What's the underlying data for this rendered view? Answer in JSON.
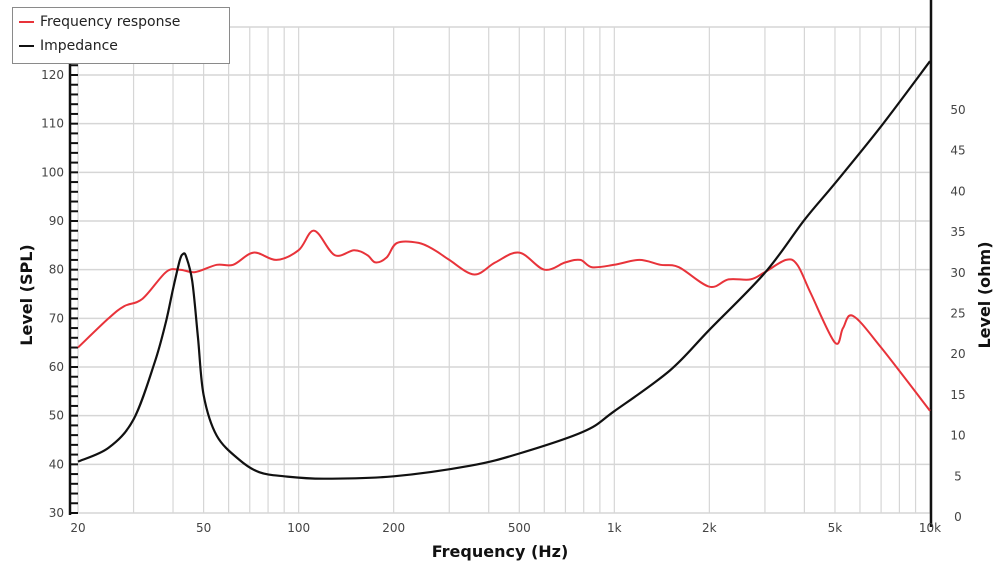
{
  "chart_data": {
    "type": "line",
    "title": "",
    "xlabel": "Frequency (Hz)",
    "ylabel": "Level (SPL)",
    "y2label": "Level (ohm)",
    "xscale": "log",
    "xlim": [
      20,
      10000
    ],
    "ylim": [
      30,
      125
    ],
    "y2lim": [
      0,
      58
    ],
    "grid": true,
    "legend_position": "top-left",
    "x_ticks": [
      {
        "value": 20,
        "label": "20"
      },
      {
        "value": 50,
        "label": "50"
      },
      {
        "value": 100,
        "label": "100"
      },
      {
        "value": 200,
        "label": "200"
      },
      {
        "value": 500,
        "label": "500"
      },
      {
        "value": 1000,
        "label": "1k"
      },
      {
        "value": 2000,
        "label": "2k"
      },
      {
        "value": 5000,
        "label": "5k"
      },
      {
        "value": 10000,
        "label": "10k"
      }
    ],
    "y_ticks": [
      30,
      40,
      50,
      60,
      70,
      80,
      90,
      100,
      110,
      120
    ],
    "y2_ticks": [
      0,
      5,
      10,
      15,
      20,
      25,
      30,
      35,
      40,
      45,
      50
    ],
    "series": [
      {
        "name": "Frequency response",
        "axis": "left",
        "color": "#e8333a",
        "x": [
          20,
          25,
          28,
          32,
          38,
          42,
          47,
          55,
          62,
          72,
          85,
          100,
          112,
          130,
          150,
          165,
          175,
          190,
          205,
          240,
          270,
          300,
          360,
          420,
          500,
          600,
          700,
          780,
          850,
          1000,
          1200,
          1400,
          1600,
          2000,
          2300,
          2700,
          3000,
          3500,
          3800,
          4200,
          5000,
          5300,
          5700,
          7000,
          10000
        ],
        "values": [
          64,
          70,
          72.5,
          74,
          79.5,
          80,
          79.5,
          81,
          81,
          83.5,
          82,
          84,
          88,
          83,
          84,
          83,
          81.5,
          82.5,
          85.5,
          85.5,
          84,
          82,
          79,
          81.5,
          83.5,
          80,
          81.5,
          82,
          80.5,
          81,
          82,
          81,
          80.5,
          76.5,
          78,
          78,
          79.5,
          82,
          81,
          75,
          65,
          68,
          70.5,
          64,
          51
        ]
      },
      {
        "name": "Impedance",
        "axis": "right",
        "color": "#111111",
        "x": [
          20,
          25,
          30,
          35,
          38,
          40,
          42,
          43,
          44,
          46,
          48,
          50,
          55,
          65,
          75,
          90,
          120,
          200,
          350,
          500,
          800,
          1000,
          1500,
          2000,
          3000,
          4000,
          5000,
          7000,
          10000
        ],
        "values": [
          6.8,
          8.5,
          12,
          19,
          24,
          28,
          31.5,
          32.3,
          32,
          29,
          22,
          15,
          10,
          7,
          5.5,
          5,
          4.7,
          5,
          6.3,
          7.8,
          10.5,
          13,
          18,
          23,
          30,
          36.5,
          41,
          48,
          56
        ]
      }
    ]
  },
  "legend": {
    "items": [
      {
        "label": "Frequency response",
        "color": "#e8333a"
      },
      {
        "label": "Impedance",
        "color": "#111111"
      }
    ]
  }
}
